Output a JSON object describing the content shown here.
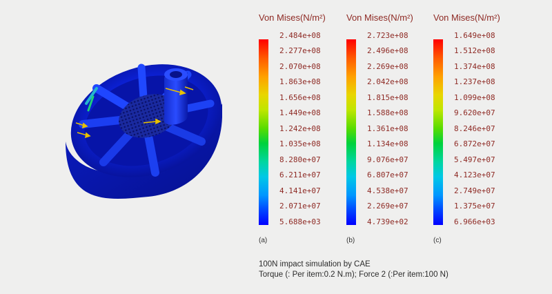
{
  "legends": [
    {
      "title": "Von Mises(N/m²)",
      "ticks": [
        "2.484e+08",
        "2.277e+08",
        "2.070e+08",
        "1.863e+08",
        "1.656e+08",
        "1.449e+08",
        "1.242e+08",
        "1.035e+08",
        "8.280e+07",
        "6.211e+07",
        "4.141e+07",
        "2.071e+07",
        "5.688e+03"
      ],
      "label": "(a)"
    },
    {
      "title": "Von Mises(N/m²)",
      "ticks": [
        "2.723e+08",
        "2.496e+08",
        "2.269e+08",
        "2.042e+08",
        "1.815e+08",
        "1.588e+08",
        "1.361e+08",
        "1.134e+08",
        "9.076e+07",
        "6.807e+07",
        "4.538e+07",
        "2.269e+07",
        "4.739e+02"
      ],
      "label": "(b)"
    },
    {
      "title": "Von Mises(N/m²)",
      "ticks": [
        "1.649e+08",
        "1.512e+08",
        "1.374e+08",
        "1.237e+08",
        "1.099e+08",
        "9.620e+07",
        "8.246e+07",
        "6.872e+07",
        "5.497e+07",
        "4.123e+07",
        "2.749e+07",
        "1.375e+07",
        "6.966e+03"
      ],
      "label": "(c)"
    }
  ],
  "caption": {
    "line1": "100N impact simulation by CAE",
    "line2": "Torque (: Per item:0.2 N.m); Force 2 (:Per item:100 N)"
  },
  "colors": {
    "background": "#efefee",
    "legend_text": "#8e2a24",
    "model_blue": "#0a1ec8"
  }
}
